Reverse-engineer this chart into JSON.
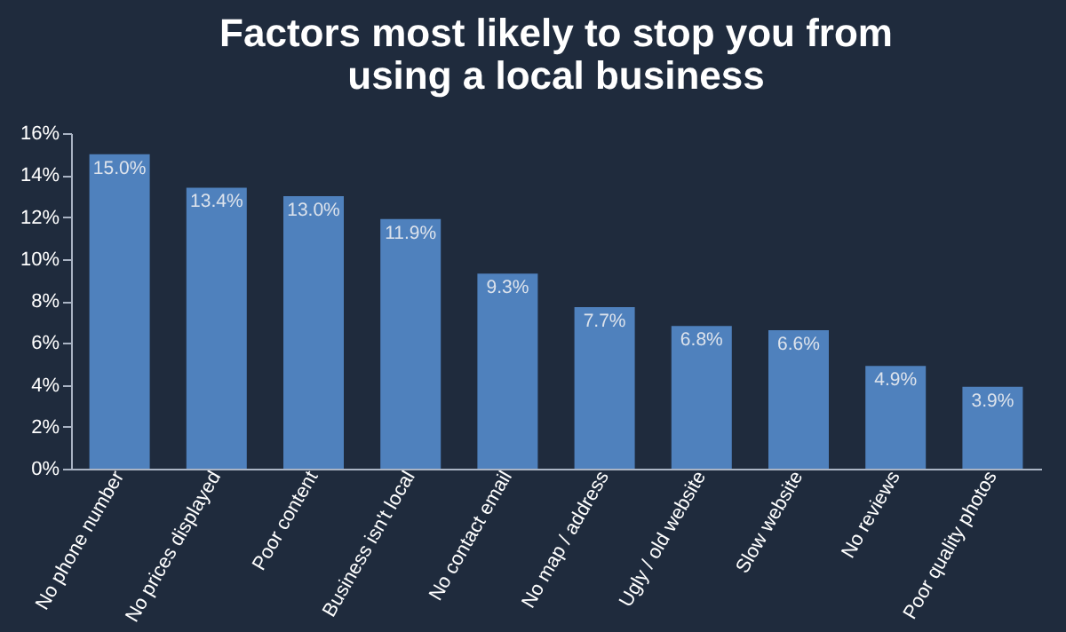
{
  "chart_data": {
    "type": "bar",
    "title": "Factors most likely to stop you from using a local business",
    "categories": [
      "No phone number",
      "No prices displayed",
      "Poor content",
      "Business isn't local",
      "No contact email",
      "No map / address",
      "Ugly / old website",
      "Slow website",
      "No reviews",
      "Poor quality photos"
    ],
    "values": [
      15.0,
      13.4,
      13.0,
      11.9,
      9.3,
      7.7,
      6.8,
      6.6,
      4.9,
      3.9
    ],
    "value_labels": [
      "15.0%",
      "13.4%",
      "13.0%",
      "11.9%",
      "9.3%",
      "7.7%",
      "6.8%",
      "6.6%",
      "4.9%",
      "3.9%"
    ],
    "color": "#4f81bd",
    "ylim": [
      0,
      16
    ],
    "yticks": [
      {
        "value": 0,
        "label": "0%"
      },
      {
        "value": 2,
        "label": "2%"
      },
      {
        "value": 4,
        "label": "4%"
      },
      {
        "value": 6,
        "label": "6%"
      },
      {
        "value": 8,
        "label": "8%"
      },
      {
        "value": 10,
        "label": "10%"
      },
      {
        "value": 12,
        "label": "12%"
      },
      {
        "value": 14,
        "label": "14%"
      },
      {
        "value": 16,
        "label": "16%"
      }
    ],
    "grid": false
  }
}
